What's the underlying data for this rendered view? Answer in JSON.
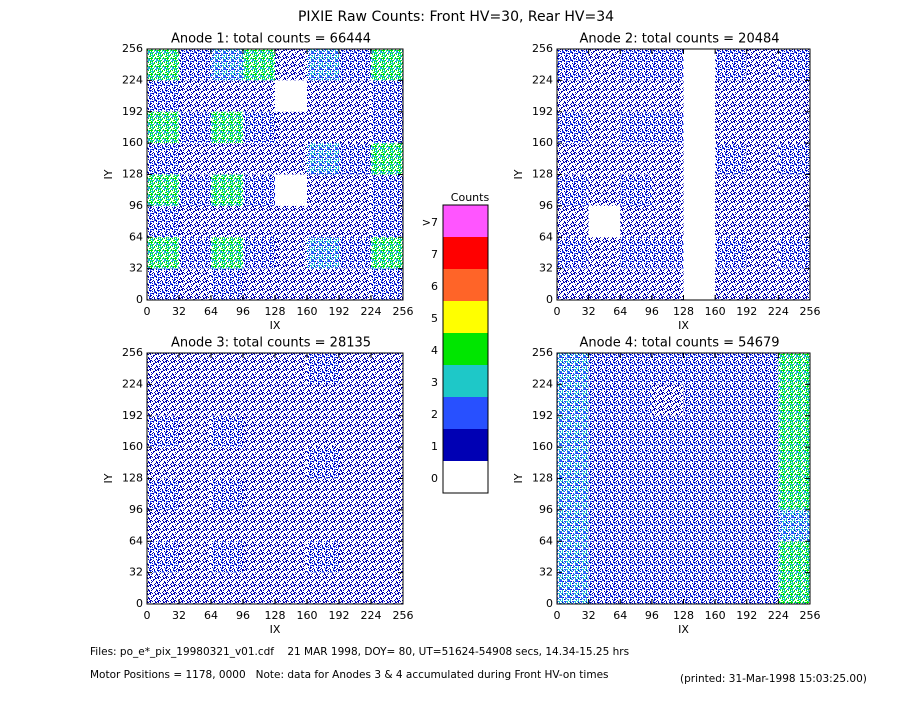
{
  "title": "PIXIE Raw Counts:  Front HV=30, Rear HV=34",
  "colorbar": {
    "title": "Counts",
    "levels": [
      {
        "value": 0,
        "label": "0",
        "color": "#ffffff"
      },
      {
        "value": 1,
        "label": "1",
        "color": "#0000b4"
      },
      {
        "value": 2,
        "label": "2",
        "color": "#2850ff"
      },
      {
        "value": 3,
        "label": "3",
        "color": "#1ec8c8"
      },
      {
        "value": 4,
        "label": "4",
        "color": "#00e600"
      },
      {
        "value": 5,
        "label": "5",
        "color": "#ffff00"
      },
      {
        "value": 6,
        "label": "6",
        "color": "#ff6428"
      },
      {
        "value": 7,
        "label": "7",
        "color": "#ff0000"
      },
      {
        "value": 8,
        "label": ">7",
        "color": "#ff55ff"
      }
    ]
  },
  "footer": [
    "Files: po_e*_pix_19980321_v01.cdf    21 MAR 1998, DOY= 80, UT=51624-54908 secs, 14.34-15.25 hrs",
    "Motor Positions = 1178, 0000   Note: data for Anodes 3 & 4 accumulated during Front HV-on times",
    "(printed: 31-Mar-1998 15:03:25.00)"
  ],
  "chart_data": [
    {
      "type": "heatmap",
      "title": "Anode 1: total counts = 66444",
      "xlabel": "IX",
      "ylabel": "IY",
      "xlim": [
        0,
        256
      ],
      "ylim": [
        0,
        256
      ],
      "xticks": [
        0,
        32,
        64,
        96,
        128,
        160,
        192,
        224,
        256
      ],
      "yticks": [
        0,
        32,
        64,
        96,
        128,
        160,
        192,
        224,
        256
      ],
      "z": [
        [
          4,
          2,
          3,
          4,
          1,
          3,
          2,
          4
        ],
        [
          2,
          1,
          1,
          1,
          0,
          1,
          1,
          2
        ],
        [
          4,
          2,
          4,
          2,
          1,
          1,
          1,
          2
        ],
        [
          2,
          1,
          1,
          1,
          1,
          3,
          2,
          4
        ],
        [
          4,
          2,
          4,
          2,
          0,
          1,
          1,
          2
        ],
        [
          2,
          1,
          1,
          1,
          1,
          1,
          1,
          2
        ],
        [
          4,
          2,
          4,
          2,
          1,
          3,
          2,
          4
        ],
        [
          2,
          1,
          2,
          1,
          1,
          1,
          1,
          2
        ]
      ]
    },
    {
      "type": "heatmap",
      "title": "Anode 2: total counts = 20484",
      "xlabel": "IX",
      "ylabel": "IY",
      "xlim": [
        0,
        256
      ],
      "ylim": [
        0,
        256
      ],
      "xticks": [
        0,
        32,
        64,
        96,
        128,
        160,
        192,
        224,
        256
      ],
      "yticks": [
        0,
        32,
        64,
        96,
        128,
        160,
        192,
        224,
        256
      ],
      "z": [
        [
          2,
          1,
          2,
          2,
          0,
          2,
          1,
          2
        ],
        [
          1,
          1,
          1,
          1,
          0,
          1,
          1,
          1
        ],
        [
          2,
          1,
          2,
          2,
          0,
          1,
          1,
          1
        ],
        [
          1,
          1,
          1,
          1,
          0,
          2,
          1,
          2
        ],
        [
          2,
          1,
          2,
          1,
          0,
          1,
          1,
          1
        ],
        [
          1,
          0,
          1,
          1,
          0,
          1,
          1,
          1
        ],
        [
          2,
          1,
          2,
          2,
          0,
          2,
          1,
          2
        ],
        [
          1,
          1,
          1,
          1,
          0,
          1,
          1,
          1
        ]
      ]
    },
    {
      "type": "heatmap",
      "title": "Anode 3: total counts = 28135",
      "xlabel": "IX",
      "ylabel": "IY",
      "xlim": [
        0,
        256
      ],
      "ylim": [
        0,
        256
      ],
      "xticks": [
        0,
        32,
        64,
        96,
        128,
        160,
        192,
        224,
        256
      ],
      "yticks": [
        0,
        32,
        64,
        96,
        128,
        160,
        192,
        224,
        256
      ],
      "z": [
        [
          1,
          1,
          1,
          1,
          1,
          2,
          1,
          1
        ],
        [
          1,
          1,
          1,
          1,
          1,
          1,
          1,
          1
        ],
        [
          2,
          1,
          2,
          1,
          1,
          1,
          1,
          1
        ],
        [
          1,
          1,
          1,
          1,
          1,
          2,
          1,
          1
        ],
        [
          2,
          1,
          2,
          1,
          1,
          1,
          1,
          1
        ],
        [
          1,
          1,
          1,
          1,
          1,
          1,
          1,
          1
        ],
        [
          2,
          1,
          2,
          1,
          1,
          2,
          1,
          1
        ],
        [
          1,
          1,
          1,
          1,
          1,
          1,
          1,
          1
        ]
      ]
    },
    {
      "type": "heatmap",
      "title": "Anode 4: total counts = 54679",
      "xlabel": "IX",
      "ylabel": "IY",
      "xlim": [
        0,
        256
      ],
      "ylim": [
        0,
        256
      ],
      "xticks": [
        0,
        32,
        64,
        96,
        128,
        160,
        192,
        224,
        256
      ],
      "yticks": [
        0,
        32,
        64,
        96,
        128,
        160,
        192,
        224,
        256
      ],
      "z": [
        [
          3,
          2,
          2,
          2,
          2,
          2,
          2,
          4
        ],
        [
          3,
          2,
          2,
          1,
          2,
          2,
          2,
          4
        ],
        [
          3,
          2,
          2,
          2,
          2,
          2,
          2,
          4
        ],
        [
          3,
          2,
          2,
          2,
          2,
          2,
          2,
          4
        ],
        [
          3,
          2,
          2,
          2,
          2,
          2,
          2,
          4
        ],
        [
          3,
          2,
          2,
          2,
          2,
          2,
          2,
          3
        ],
        [
          3,
          2,
          2,
          2,
          2,
          2,
          2,
          4
        ],
        [
          3,
          2,
          2,
          2,
          2,
          2,
          2,
          4
        ]
      ]
    }
  ]
}
